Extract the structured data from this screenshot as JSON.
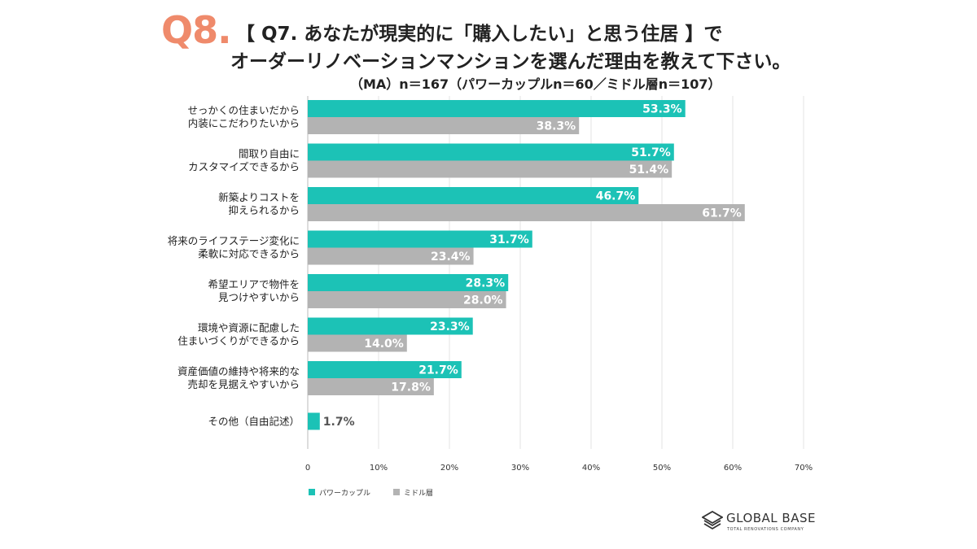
{
  "header": {
    "qnum": "Q8.",
    "title_line1": "【 Q7. あなたが現実的に「購入したい」と思う住居 】で",
    "title_line2": "オーダーリノベーションマンションを選んだ理由を教えて下さい。",
    "subtitle": "（MA）n＝167（パワーカップルn＝60／ミドル層n＝107）"
  },
  "chart_data": {
    "type": "bar",
    "orientation": "horizontal",
    "categories": [
      [
        "せっかくの住まいだから",
        "内装にこだわりたいから"
      ],
      [
        "間取り自由に",
        "カスタマイズできるから"
      ],
      [
        "新築よりコストを",
        "抑えられるから"
      ],
      [
        "将来のライフステージ変化に",
        "柔軟に対応できるから"
      ],
      [
        "希望エリアで物件を",
        "見つけやすいから"
      ],
      [
        "環境や資源に配慮した",
        "住まいづくりができるから"
      ],
      [
        "資産価値の維持や将来的な",
        "売却を見据えやすいから"
      ],
      [
        "その他（自由記述）"
      ]
    ],
    "series": [
      {
        "name": "パワーカップル",
        "color": "#1cc2b6",
        "values": [
          53.3,
          51.7,
          46.7,
          31.7,
          28.3,
          23.3,
          21.7,
          1.7
        ],
        "labels": [
          "53.3%",
          "51.7%",
          "46.7%",
          "31.7%",
          "28.3%",
          "23.3%",
          "21.7%",
          "1.7%"
        ]
      },
      {
        "name": "ミドル層",
        "color": "#b3b3b3",
        "values": [
          38.3,
          51.4,
          61.7,
          23.4,
          28.0,
          14.0,
          17.8,
          null
        ],
        "labels": [
          "38.3%",
          "51.4%",
          "61.7%",
          "23.4%",
          "28.0%",
          "14.0%",
          "17.8%",
          ""
        ]
      }
    ],
    "xlim": [
      0,
      70
    ],
    "xticks": [
      "0",
      "10%",
      "20%",
      "30%",
      "40%",
      "50%",
      "60%",
      "70%"
    ],
    "grid": true,
    "legend": "bottom-left"
  },
  "logo": {
    "name": "GLOBAL BASE",
    "tagline": "TOTAL RENOVATIONS COMPANY"
  }
}
